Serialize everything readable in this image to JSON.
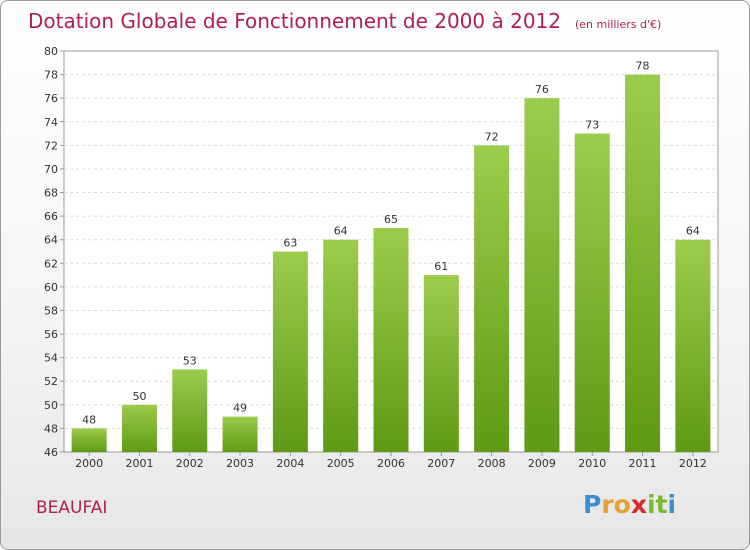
{
  "chart_data": {
    "type": "bar",
    "title": "Dotation Globale de Fonctionnement de 2000 à 2012",
    "subtitle": "(en milliers d'€)",
    "categories": [
      "2000",
      "2001",
      "2002",
      "2003",
      "2004",
      "2005",
      "2006",
      "2007",
      "2008",
      "2009",
      "2010",
      "2011",
      "2012"
    ],
    "values": [
      48,
      50,
      53,
      49,
      63,
      64,
      65,
      61,
      72,
      76,
      73,
      78,
      64
    ],
    "data_labels": [
      "48",
      "50",
      "53",
      "49",
      "63",
      "64",
      "65",
      "61",
      "72",
      "76",
      "73",
      "78",
      "64"
    ],
    "xlabel": "",
    "ylabel": "",
    "ylim": [
      46,
      80
    ],
    "yticks": [
      46,
      48,
      50,
      52,
      54,
      56,
      58,
      60,
      62,
      64,
      66,
      68,
      70,
      72,
      74,
      76,
      78,
      80
    ],
    "grid": true,
    "bar_color_top": "#9ccc4c",
    "bar_color_bottom": "#5e9a14",
    "title_color": "#b0204e"
  },
  "commune": "BEAUFAI",
  "logo": {
    "letters": [
      "P",
      "r",
      "o",
      "x",
      "i",
      "t",
      "i"
    ],
    "colors": [
      "#3b8fd0",
      "#e8a12c",
      "#e8a12c",
      "#d8282a",
      "#7cb82f",
      "#7cb82f",
      "#3b8fd0"
    ]
  }
}
